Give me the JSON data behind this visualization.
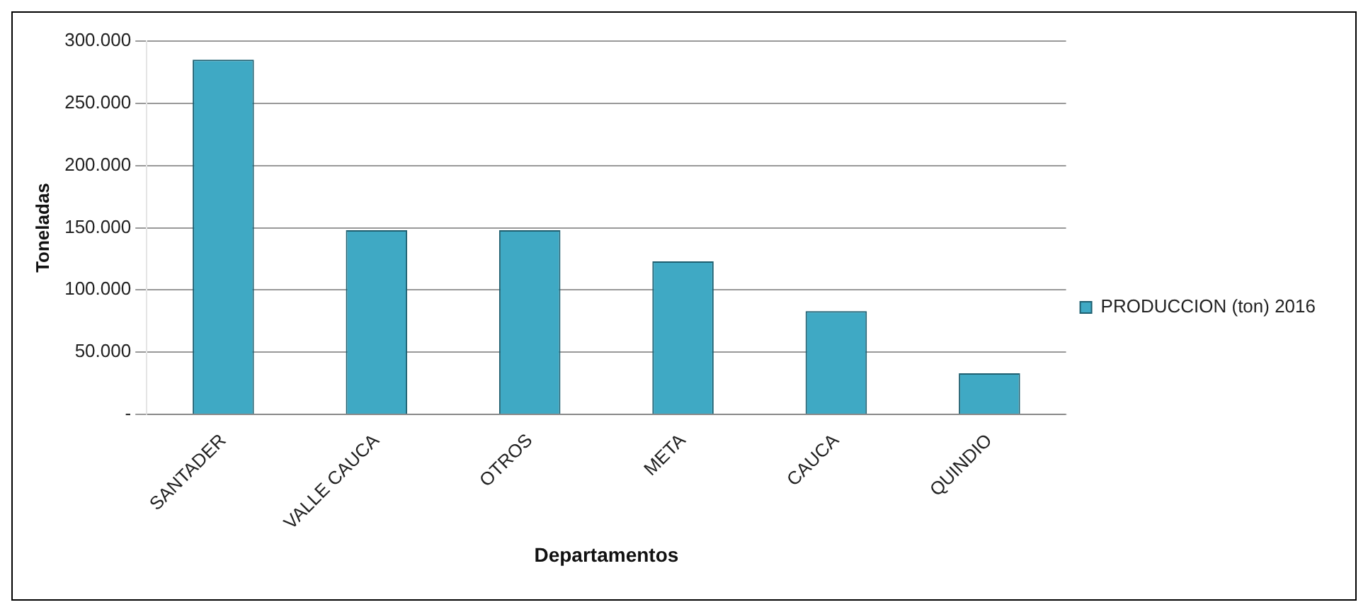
{
  "chart_data": {
    "type": "bar",
    "xlabel": "Departamentos",
    "ylabel": "Toneladas",
    "categories": [
      "SANTADER",
      "VALLE CAUCA",
      "OTROS",
      "META",
      "CAUCA",
      "QUINDIO"
    ],
    "series": [
      {
        "name": "PRODUCCION (ton) 2016",
        "color": "#3fa9c4",
        "values": [
          285000,
          148000,
          148000,
          123000,
          83000,
          33000
        ]
      }
    ],
    "ylim": [
      0,
      300000
    ],
    "yticks": [
      {
        "value": 0,
        "label": "-"
      },
      {
        "value": 50000,
        "label": "50.000"
      },
      {
        "value": 100000,
        "label": "100.000"
      },
      {
        "value": 150000,
        "label": "150.000"
      },
      {
        "value": 200000,
        "label": "200.000"
      },
      {
        "value": 250000,
        "label": "250.000"
      },
      {
        "value": 300000,
        "label": "300.000"
      }
    ],
    "grid": "y",
    "legend": "right"
  }
}
